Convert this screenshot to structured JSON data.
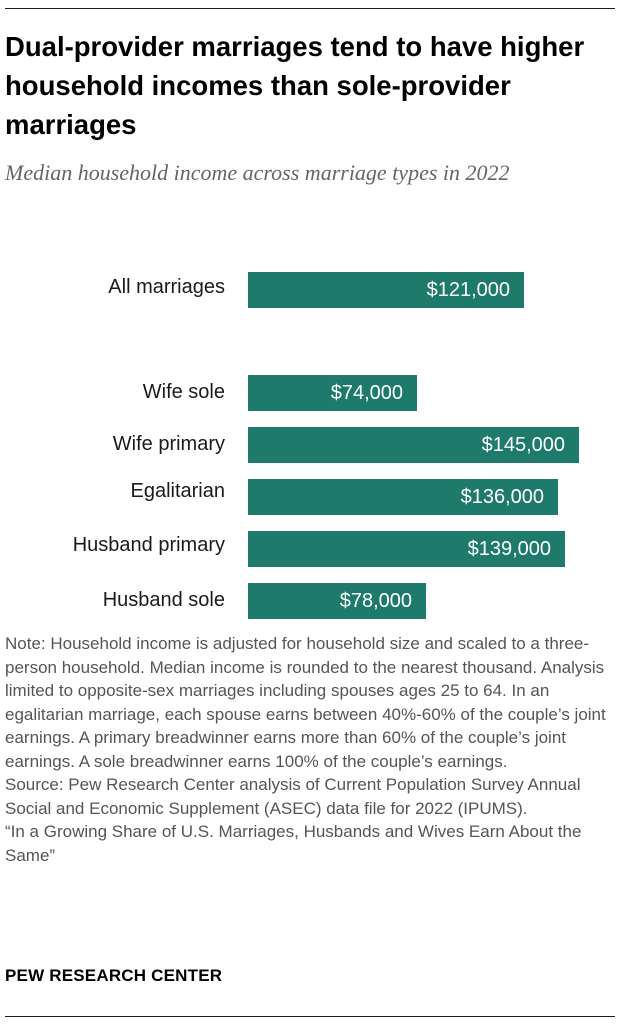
{
  "title": "Dual-provider marriages tend to have higher household incomes than sole-provider marriages",
  "subtitle": "Median household income across marriage types in 2022",
  "chart_data": {
    "type": "bar",
    "orientation": "horizontal",
    "title": "Dual-provider marriages tend to have higher household incomes than sole-provider marriages",
    "subtitle": "Median household income across marriage types in 2022",
    "categories": [
      "All marriages",
      "Wife sole",
      "Wife primary",
      "Egalitarian",
      "Husband primary",
      "Husband sole"
    ],
    "values": [
      121000,
      74000,
      145000,
      136000,
      139000,
      78000
    ],
    "value_labels": [
      "$121,000",
      "$74,000",
      "$145,000",
      "$136,000",
      "$139,000",
      "$78,000"
    ],
    "xlabel": "",
    "ylabel": "",
    "xlim": [
      0,
      145000
    ],
    "bar_color": "#1e7a6b",
    "grid": false,
    "legend": "none"
  },
  "note_lines": [
    "Note: Household income is adjusted for household size and scaled to a three-person household. Median income is rounded to the nearest thousand. Analysis limited to opposite-sex marriages including spouses ages 25 to 64. In an egalitarian marriage, each spouse earns between 40%-60% of the couple’s joint earnings. A primary breadwinner earns more than 60% of the couple’s joint earnings. A sole breadwinner earns 100% of the couple’s earnings.",
    "Source: Pew Research Center analysis of Current Population Survey Annual Social and Economic Supplement (ASEC) data file for 2022 (IPUMS).",
    "“In a Growing Share of U.S. Marriages, Husbands and Wives Earn About the Same”"
  ],
  "brand": "PEW RESEARCH CENTER"
}
